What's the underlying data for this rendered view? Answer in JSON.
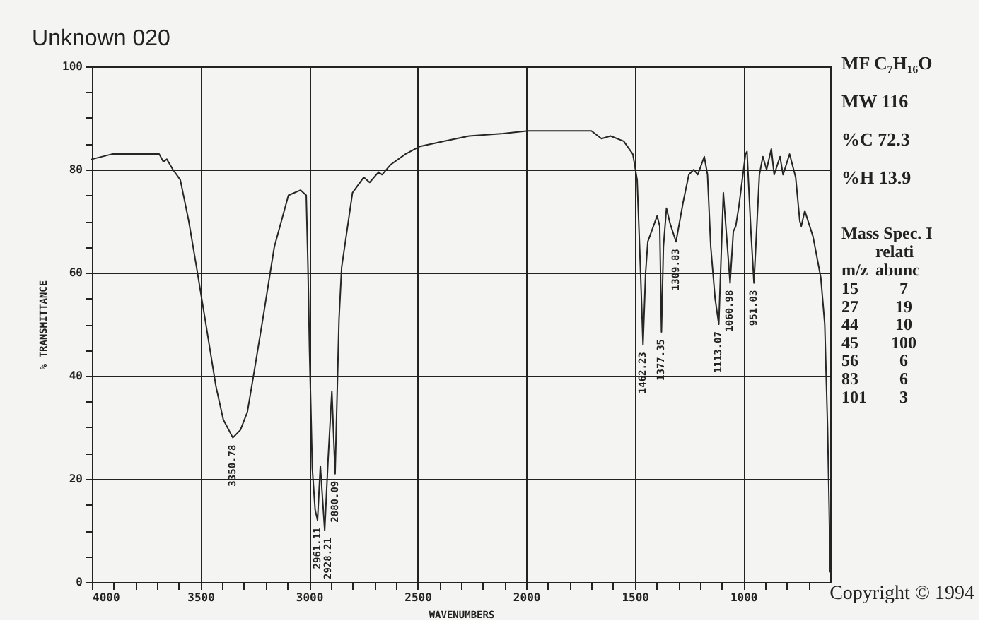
{
  "chart_data": [
    {
      "type": "line",
      "title": "Unknown 020",
      "xlabel": "WAVENUMBERS",
      "ylabel": "% TRANSMITTANCE",
      "xlim": [
        4000,
        600
      ],
      "ylim": [
        0,
        100
      ],
      "grid": true,
      "xticks": [
        4000,
        {
          "value": 3900,
          "label": null
        },
        {
          "value": 3800,
          "label": null
        },
        {
          "value": 3700,
          "label": null
        },
        {
          "value": 3600,
          "label": null
        },
        3500,
        {
          "value": 3400,
          "label": null
        },
        {
          "value": 3300,
          "label": null
        },
        {
          "value": 3200,
          "label": null
        },
        {
          "value": 3100,
          "label": null
        },
        3000,
        {
          "value": 2900,
          "label": null
        },
        {
          "value": 2800,
          "label": null
        },
        {
          "value": 2700,
          "label": null
        },
        {
          "value": 2600,
          "label": null
        },
        2500,
        {
          "value": 2400,
          "label": null
        },
        {
          "value": 2300,
          "label": null
        },
        {
          "value": 2200,
          "label": null
        },
        {
          "value": 2100,
          "label": null
        },
        2000,
        {
          "value": 1900,
          "label": null
        },
        {
          "value": 1800,
          "label": null
        },
        {
          "value": 1700,
          "label": null
        },
        {
          "value": 1600,
          "label": null
        },
        1500,
        {
          "value": 1400,
          "label": null
        },
        {
          "value": 1300,
          "label": null
        },
        {
          "value": 1200,
          "label": null
        },
        {
          "value": 1100,
          "label": null
        },
        1000,
        {
          "value": 900,
          "label": null
        },
        {
          "value": 800,
          "label": null
        },
        {
          "value": 700,
          "label": null
        }
      ],
      "yticks": [
        0,
        {
          "value": 5,
          "label": null
        },
        {
          "value": 10,
          "label": null
        },
        {
          "value": 15,
          "label": null
        },
        20,
        {
          "value": 25,
          "label": null
        },
        {
          "value": 30,
          "label": null
        },
        {
          "value": 35,
          "label": null
        },
        40,
        {
          "value": 45,
          "label": null
        },
        {
          "value": 50,
          "label": null
        },
        {
          "value": 55,
          "label": null
        },
        60,
        {
          "value": 65,
          "label": null
        },
        {
          "value": 70,
          "label": null
        },
        {
          "value": 75,
          "label": null
        },
        80,
        {
          "value": 85,
          "label": null
        },
        {
          "value": 90,
          "label": null
        },
        {
          "value": 95,
          "label": null
        },
        100
      ],
      "x": [
        4000,
        3907,
        3800,
        3705,
        3690,
        3671,
        3655,
        3627,
        3593,
        3554,
        3518,
        3479,
        3429,
        3395,
        3351,
        3316,
        3284,
        3254,
        3213,
        3160,
        3095,
        3039,
        3013,
        3005,
        2998,
        2985,
        2972,
        2961,
        2948,
        2928,
        2912,
        2895,
        2880,
        2862,
        2850,
        2800,
        2748,
        2721,
        2680,
        2664,
        2623,
        2556,
        2489,
        2376,
        2263,
        2105,
        1992,
        1767,
        1700,
        1653,
        1612,
        1551,
        1509,
        1489,
        1475,
        1462,
        1450,
        1440,
        1397,
        1385,
        1377,
        1368,
        1354,
        1337,
        1310,
        1278,
        1251,
        1228,
        1210,
        1180,
        1165,
        1150,
        1130,
        1113,
        1092,
        1061,
        1046,
        1035,
        1020,
        990,
        983,
        965,
        951,
        926,
        910,
        893,
        871,
        858,
        831,
        817,
        787,
        759,
        740,
        733,
        717,
        679,
        643,
        625,
        612,
        605,
        600
      ],
      "series": [
        {
          "color": "#262626",
          "values": [
            82,
            83,
            83,
            83,
            83,
            81.5,
            82,
            80,
            78,
            70,
            61,
            51,
            38,
            31.5,
            28,
            29.5,
            33,
            40.5,
            51,
            65,
            75,
            76,
            75,
            61,
            45,
            22,
            14,
            12,
            22.5,
            10,
            24,
            37,
            21,
            51,
            61,
            75.5,
            78.5,
            77.5,
            79.5,
            79,
            81,
            83,
            84.5,
            85.5,
            86.5,
            87,
            87.5,
            87.5,
            87.5,
            86,
            86.5,
            85.5,
            83,
            78,
            62,
            46,
            60,
            66,
            71,
            69,
            48.5,
            65,
            72.5,
            69.5,
            66,
            73.5,
            79,
            80,
            79,
            82.5,
            79,
            65,
            55,
            50,
            75.5,
            58,
            68,
            69,
            73,
            83,
            83.5,
            68,
            58,
            79,
            82.5,
            80,
            84,
            79,
            82.5,
            79,
            83,
            78.5,
            70,
            69,
            72,
            67,
            59,
            50,
            30,
            15,
            2
          ]
        }
      ],
      "annotations": [
        {
          "text": "3350.78",
          "x": 3350.78,
          "y": 28
        },
        {
          "text": "2961.11",
          "x": 2961.11,
          "y": 12
        },
        {
          "text": "2928.21",
          "x": 2928.21,
          "y": 10
        },
        {
          "text": "2880.09",
          "x": 2880.09,
          "y": 21
        },
        {
          "text": "1462.23",
          "x": 1462.23,
          "y": 46
        },
        {
          "text": "1377.35",
          "x": 1377.35,
          "y": 48.5
        },
        {
          "text": "1309.83",
          "x": 1309.83,
          "y": 66
        },
        {
          "text": "1113.07",
          "x": 1113.07,
          "y": 50
        },
        {
          "text": "1060.98",
          "x": 1060.98,
          "y": 58
        },
        {
          "text": "951.03",
          "x": 951.03,
          "y": 58
        },
        "Copyright © 1994"
      ]
    },
    {
      "type": "other",
      "title": "Mass Spec. I",
      "annotations": [
        "MF C₇H₁₆O",
        "MW 116",
        "%C 72.3",
        "%H 13.9"
      ],
      "xlabel": "m/z",
      "ylabel": "relati abunc",
      "categories": [
        "15",
        "27",
        "44",
        "45",
        "56",
        "83",
        "101"
      ],
      "values": [
        7,
        19,
        10,
        100,
        6,
        6,
        3
      ],
      "data_labels": true
    }
  ]
}
